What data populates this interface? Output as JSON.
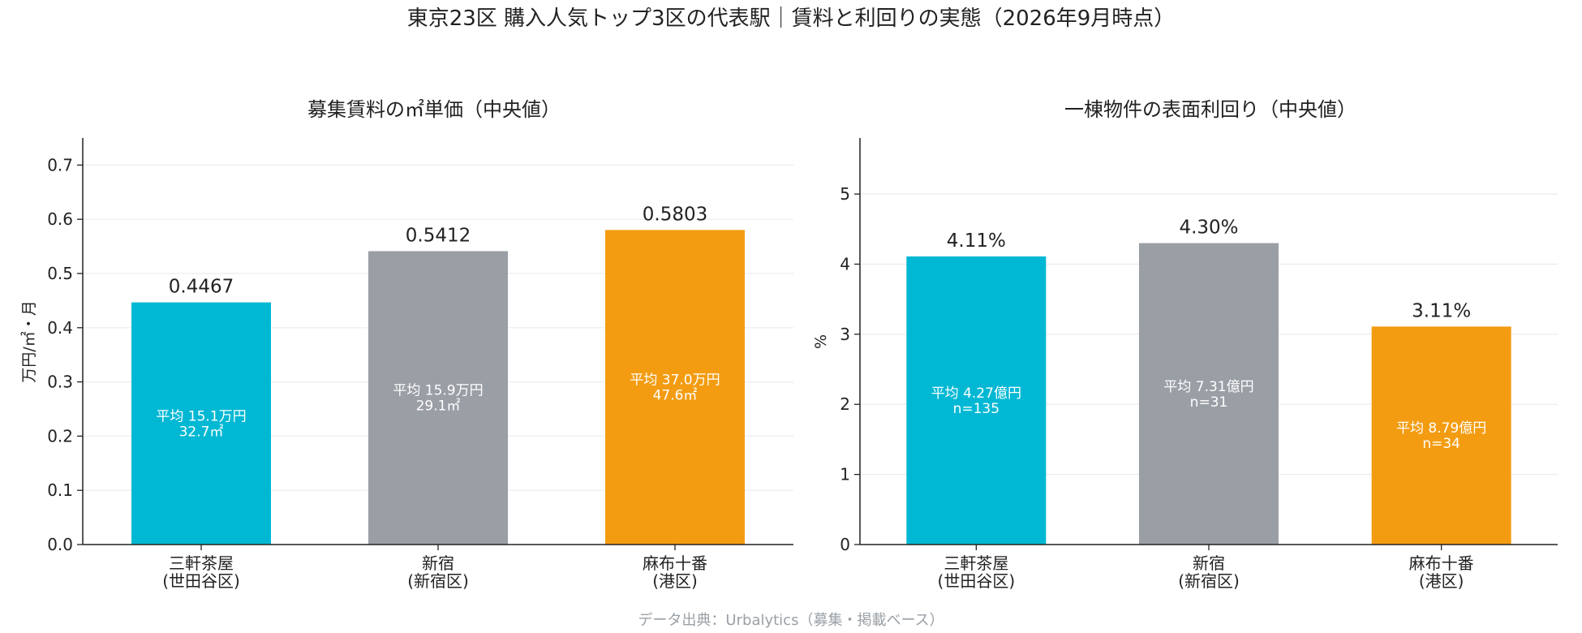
{
  "suptitle": "東京23区 購入人気トップ3区の代表駅｜賃料と利回りの実態（2026年9月時点）",
  "source": "データ出典：Urbalytics（募集・掲載ベース）",
  "colors": {
    "cyan": "#00b8d4",
    "gray": "#9a9ea5",
    "orange": "#f39c12",
    "grid": "#ececec",
    "axis": "#222222",
    "source_text": "#9aa0a6"
  },
  "chart_data": [
    {
      "type": "bar",
      "title": "募集賃料の㎡単価（中央値）",
      "xlabel": "",
      "ylabel": "万円/㎡・月",
      "ylim": [
        0,
        0.75
      ],
      "yticks": [
        "0.0",
        "0.1",
        "0.2",
        "0.3",
        "0.4",
        "0.5",
        "0.6",
        "0.7"
      ],
      "grid": true,
      "categories": [
        [
          "三軒茶屋",
          "(世田谷区)"
        ],
        [
          "新宿",
          "(新宿区)"
        ],
        [
          "麻布十番",
          "(港区)"
        ]
      ],
      "values": [
        0.4467,
        0.5412,
        0.5803
      ],
      "value_labels": [
        "0.4467",
        "0.5412",
        "0.5803"
      ],
      "inner_labels": [
        [
          "平均 15.1万円",
          "32.7㎡"
        ],
        [
          "平均 15.9万円",
          "29.1㎡"
        ],
        [
          "平均 37.0万円",
          "47.6㎡"
        ]
      ],
      "bar_colors": [
        "#00b8d4",
        "#9a9ea5",
        "#f39c12"
      ]
    },
    {
      "type": "bar",
      "title": "一棟物件の表面利回り（中央値）",
      "xlabel": "",
      "ylabel": "%",
      "ylim": [
        0,
        5.8
      ],
      "yticks": [
        "0",
        "1",
        "2",
        "3",
        "4",
        "5"
      ],
      "grid": true,
      "categories": [
        [
          "三軒茶屋",
          "(世田谷区)"
        ],
        [
          "新宿",
          "(新宿区)"
        ],
        [
          "麻布十番",
          "(港区)"
        ]
      ],
      "values": [
        4.11,
        4.3,
        3.11
      ],
      "value_labels": [
        "4.11%",
        "4.30%",
        "3.11%"
      ],
      "inner_labels": [
        [
          "平均 4.27億円",
          "n=135"
        ],
        [
          "平均 7.31億円",
          "n=31"
        ],
        [
          "平均 8.79億円",
          "n=34"
        ]
      ],
      "bar_colors": [
        "#00b8d4",
        "#9a9ea5",
        "#f39c12"
      ]
    }
  ]
}
